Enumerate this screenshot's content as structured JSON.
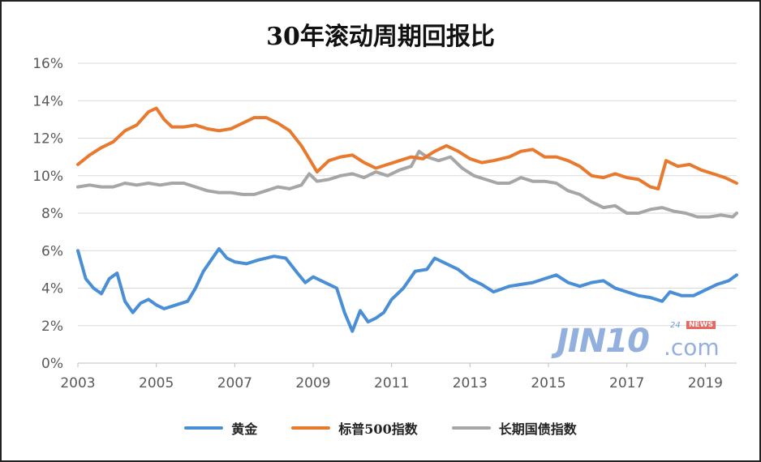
{
  "chart_data": {
    "type": "line",
    "title": "30年滚动周期回报比",
    "ylim": [
      0,
      16
    ],
    "xlim": [
      2003,
      2019.8
    ],
    "yticks": [
      "0%",
      "2%",
      "4%",
      "6%",
      "8%",
      "10%",
      "12%",
      "14%",
      "16%"
    ],
    "ytick_values": [
      0,
      2,
      4,
      6,
      8,
      10,
      12,
      14,
      16
    ],
    "xticks": [
      "2003",
      "2005",
      "2007",
      "2009",
      "2011",
      "2013",
      "2015",
      "2017",
      "2019"
    ],
    "xtick_values": [
      2003,
      2005,
      2007,
      2009,
      2011,
      2013,
      2015,
      2017,
      2019
    ],
    "grid": true,
    "legend_position": "bottom",
    "series": [
      {
        "name": "黄金",
        "color": "#4a8fd6",
        "x": [
          2003.0,
          2003.2,
          2003.4,
          2003.6,
          2003.8,
          2004.0,
          2004.2,
          2004.4,
          2004.6,
          2004.8,
          2005.0,
          2005.2,
          2005.5,
          2005.8,
          2006.0,
          2006.2,
          2006.4,
          2006.6,
          2006.8,
          2007.0,
          2007.3,
          2007.6,
          2008.0,
          2008.3,
          2008.6,
          2008.8,
          2009.0,
          2009.3,
          2009.6,
          2009.8,
          2010.0,
          2010.2,
          2010.4,
          2010.6,
          2010.8,
          2011.0,
          2011.3,
          2011.6,
          2011.9,
          2012.1,
          2012.4,
          2012.7,
          2013.0,
          2013.3,
          2013.6,
          2014.0,
          2014.3,
          2014.6,
          2014.9,
          2015.2,
          2015.5,
          2015.8,
          2016.1,
          2016.4,
          2016.7,
          2017.0,
          2017.3,
          2017.6,
          2017.9,
          2018.1,
          2018.4,
          2018.7,
          2019.0,
          2019.3,
          2019.6,
          2019.8
        ],
        "values": [
          6.0,
          4.5,
          4.0,
          3.7,
          4.5,
          4.8,
          3.3,
          2.7,
          3.2,
          3.4,
          3.1,
          2.9,
          3.1,
          3.3,
          4.0,
          4.9,
          5.5,
          6.1,
          5.6,
          5.4,
          5.3,
          5.5,
          5.7,
          5.6,
          4.8,
          4.3,
          4.6,
          4.3,
          4.0,
          2.7,
          1.7,
          2.8,
          2.2,
          2.4,
          2.7,
          3.4,
          4.0,
          4.9,
          5.0,
          5.6,
          5.3,
          5.0,
          4.5,
          4.2,
          3.8,
          4.1,
          4.2,
          4.3,
          4.5,
          4.7,
          4.3,
          4.1,
          4.3,
          4.4,
          4.0,
          3.8,
          3.6,
          3.5,
          3.3,
          3.8,
          3.6,
          3.6,
          3.9,
          4.2,
          4.4,
          4.7
        ]
      },
      {
        "name": "标普500指数",
        "color": "#e77a2e",
        "x": [
          2003.0,
          2003.3,
          2003.6,
          2003.9,
          2004.2,
          2004.5,
          2004.8,
          2005.0,
          2005.2,
          2005.4,
          2005.7,
          2006.0,
          2006.3,
          2006.6,
          2006.9,
          2007.2,
          2007.5,
          2007.8,
          2008.1,
          2008.4,
          2008.7,
          2008.9,
          2009.1,
          2009.4,
          2009.7,
          2010.0,
          2010.3,
          2010.6,
          2010.9,
          2011.2,
          2011.5,
          2011.8,
          2012.1,
          2012.4,
          2012.7,
          2013.0,
          2013.3,
          2013.6,
          2014.0,
          2014.3,
          2014.6,
          2014.9,
          2015.2,
          2015.5,
          2015.8,
          2016.1,
          2016.4,
          2016.7,
          2017.0,
          2017.3,
          2017.6,
          2017.8,
          2018.0,
          2018.3,
          2018.6,
          2018.9,
          2019.2,
          2019.5,
          2019.8
        ],
        "values": [
          10.6,
          11.1,
          11.5,
          11.8,
          12.4,
          12.7,
          13.4,
          13.6,
          13.0,
          12.6,
          12.6,
          12.7,
          12.5,
          12.4,
          12.5,
          12.8,
          13.1,
          13.1,
          12.8,
          12.4,
          11.6,
          10.9,
          10.2,
          10.8,
          11.0,
          11.1,
          10.7,
          10.4,
          10.6,
          10.8,
          11.0,
          10.9,
          11.3,
          11.6,
          11.3,
          10.9,
          10.7,
          10.8,
          11.0,
          11.3,
          11.4,
          11.0,
          11.0,
          10.8,
          10.5,
          10.0,
          9.9,
          10.1,
          9.9,
          9.8,
          9.4,
          9.3,
          10.8,
          10.5,
          10.6,
          10.3,
          10.1,
          9.9,
          9.6
        ]
      },
      {
        "name": "长期国债指数",
        "color": "#a6a6a6",
        "x": [
          2003.0,
          2003.3,
          2003.6,
          2003.9,
          2004.2,
          2004.5,
          2004.8,
          2005.1,
          2005.4,
          2005.7,
          2006.0,
          2006.3,
          2006.6,
          2006.9,
          2007.2,
          2007.5,
          2007.8,
          2008.1,
          2008.4,
          2008.7,
          2008.9,
          2009.1,
          2009.4,
          2009.7,
          2010.0,
          2010.3,
          2010.6,
          2010.9,
          2011.2,
          2011.5,
          2011.7,
          2011.9,
          2012.2,
          2012.5,
          2012.8,
          2013.1,
          2013.4,
          2013.7,
          2014.0,
          2014.3,
          2014.6,
          2014.9,
          2015.2,
          2015.5,
          2015.8,
          2016.1,
          2016.4,
          2016.7,
          2017.0,
          2017.3,
          2017.6,
          2017.9,
          2018.2,
          2018.5,
          2018.8,
          2019.1,
          2019.4,
          2019.7,
          2019.8
        ],
        "values": [
          9.4,
          9.5,
          9.4,
          9.4,
          9.6,
          9.5,
          9.6,
          9.5,
          9.6,
          9.6,
          9.4,
          9.2,
          9.1,
          9.1,
          9.0,
          9.0,
          9.2,
          9.4,
          9.3,
          9.5,
          10.1,
          9.7,
          9.8,
          10.0,
          10.1,
          9.9,
          10.2,
          10.0,
          10.3,
          10.5,
          11.3,
          11.0,
          10.8,
          11.0,
          10.4,
          10.0,
          9.8,
          9.6,
          9.6,
          9.9,
          9.7,
          9.7,
          9.6,
          9.2,
          9.0,
          8.6,
          8.3,
          8.4,
          8.0,
          8.0,
          8.2,
          8.3,
          8.1,
          8.0,
          7.8,
          7.8,
          7.9,
          7.8,
          8.0
        ]
      }
    ]
  },
  "watermark": {
    "brand": "JIN10",
    "domain": ".com",
    "tag_24": "24",
    "tag_news": "NEWS"
  }
}
